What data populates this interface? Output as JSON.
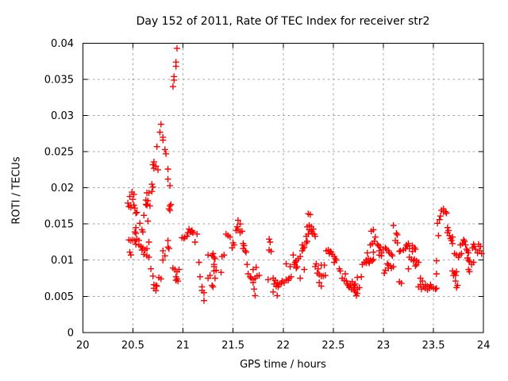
{
  "chart_data": {
    "type": "scatter",
    "title": "Day 152 of 2011, Rate Of TEC Index for receiver str2",
    "xlabel": "GPS time / hours",
    "ylabel": "ROTI / TECUs",
    "xlim": [
      20,
      24
    ],
    "ylim": [
      0,
      0.04
    ],
    "x_ticks": [
      "20",
      "20.5",
      "21",
      "21.5",
      "22",
      "22.5",
      "23",
      "23.5",
      "24"
    ],
    "y_ticks": [
      "0",
      "0.005",
      "0.01",
      "0.015",
      "0.02",
      "0.025",
      "0.03",
      "0.035",
      "0.04"
    ],
    "grid": true,
    "legend": false,
    "marker": "plus",
    "colors": {
      "points": "#ff0000",
      "grid": "#a0a0a0",
      "axis": "#000000",
      "background": "#ffffff"
    },
    "points": [
      [
        20.45,
        0.0179
      ],
      [
        20.46,
        0.0174
      ],
      [
        20.46,
        0.0128
      ],
      [
        20.47,
        0.0188
      ],
      [
        20.47,
        0.0111
      ],
      [
        20.48,
        0.0176
      ],
      [
        20.48,
        0.0173
      ],
      [
        20.48,
        0.0127
      ],
      [
        20.48,
        0.0107
      ],
      [
        20.49,
        0.0194
      ],
      [
        20.5,
        0.0184
      ],
      [
        20.5,
        0.0128
      ],
      [
        20.51,
        0.0191
      ],
      [
        20.51,
        0.0176
      ],
      [
        20.52,
        0.0172
      ],
      [
        20.52,
        0.0139
      ],
      [
        20.52,
        0.0127
      ],
      [
        20.53,
        0.0165
      ],
      [
        20.53,
        0.0145
      ],
      [
        20.53,
        0.0137
      ],
      [
        20.53,
        0.0122
      ],
      [
        20.54,
        0.0166
      ],
      [
        20.54,
        0.0129
      ],
      [
        20.56,
        0.0127
      ],
      [
        20.56,
        0.0121
      ],
      [
        20.57,
        0.0151
      ],
      [
        20.58,
        0.0119
      ],
      [
        20.59,
        0.0142
      ],
      [
        20.59,
        0.0114
      ],
      [
        20.6,
        0.0139
      ],
      [
        20.6,
        0.0117
      ],
      [
        20.61,
        0.0162
      ],
      [
        20.61,
        0.0108
      ],
      [
        20.62,
        0.0114
      ],
      [
        20.63,
        0.0183
      ],
      [
        20.63,
        0.0177
      ],
      [
        20.64,
        0.0193
      ],
      [
        20.64,
        0.0176
      ],
      [
        20.64,
        0.0116
      ],
      [
        20.64,
        0.0106
      ],
      [
        20.65,
        0.0182
      ],
      [
        20.65,
        0.0154
      ],
      [
        20.66,
        0.0193
      ],
      [
        20.66,
        0.0125
      ],
      [
        20.66,
        0.0104
      ],
      [
        20.67,
        0.0175
      ],
      [
        20.68,
        0.0088
      ],
      [
        20.69,
        0.0205
      ],
      [
        20.69,
        0.0195
      ],
      [
        20.7,
        0.0232
      ],
      [
        20.7,
        0.0201
      ],
      [
        20.7,
        0.0078
      ],
      [
        20.71,
        0.0236
      ],
      [
        20.71,
        0.0227
      ],
      [
        20.71,
        0.0066
      ],
      [
        20.71,
        0.0061
      ],
      [
        20.73,
        0.023
      ],
      [
        20.73,
        0.0065
      ],
      [
        20.73,
        0.0058
      ],
      [
        20.74,
        0.0257
      ],
      [
        20.74,
        0.0064
      ],
      [
        20.75,
        0.0225
      ],
      [
        20.76,
        0.0076
      ],
      [
        20.77,
        0.0277
      ],
      [
        20.78,
        0.0288
      ],
      [
        20.78,
        0.0074
      ],
      [
        20.8,
        0.027
      ],
      [
        20.8,
        0.0266
      ],
      [
        20.8,
        0.0113
      ],
      [
        20.8,
        0.01
      ],
      [
        20.82,
        0.0253
      ],
      [
        20.82,
        0.0106
      ],
      [
        20.83,
        0.0247
      ],
      [
        20.85,
        0.0226
      ],
      [
        20.85,
        0.0212
      ],
      [
        20.85,
        0.0127
      ],
      [
        20.85,
        0.0118
      ],
      [
        20.86,
        0.0171
      ],
      [
        20.86,
        0.0116
      ],
      [
        20.87,
        0.0203
      ],
      [
        20.87,
        0.0175
      ],
      [
        20.87,
        0.0169
      ],
      [
        20.88,
        0.0177
      ],
      [
        20.9,
        0.034
      ],
      [
        20.9,
        0.0089
      ],
      [
        20.91,
        0.0354
      ],
      [
        20.91,
        0.0349
      ],
      [
        20.92,
        0.0087
      ],
      [
        20.93,
        0.0374
      ],
      [
        20.93,
        0.0368
      ],
      [
        20.93,
        0.0077
      ],
      [
        20.93,
        0.0072
      ],
      [
        20.94,
        0.0393
      ],
      [
        20.94,
        0.0084
      ],
      [
        20.94,
        0.0074
      ],
      [
        20.95,
        0.0071
      ],
      [
        20.96,
        0.0087
      ],
      [
        20.99,
        0.0131
      ],
      [
        21.01,
        0.013
      ],
      [
        21.02,
        0.0132
      ],
      [
        21.04,
        0.0133
      ],
      [
        21.05,
        0.0138
      ],
      [
        21.06,
        0.0143
      ],
      [
        21.07,
        0.0139
      ],
      [
        21.08,
        0.014
      ],
      [
        21.09,
        0.0141
      ],
      [
        21.09,
        0.0139
      ],
      [
        21.1,
        0.0138
      ],
      [
        21.12,
        0.0125
      ],
      [
        21.14,
        0.0136
      ],
      [
        21.16,
        0.0097
      ],
      [
        21.17,
        0.0077
      ],
      [
        21.19,
        0.0063
      ],
      [
        21.19,
        0.0058
      ],
      [
        21.21,
        0.0055
      ],
      [
        21.21,
        0.0044
      ],
      [
        21.25,
        0.0107
      ],
      [
        21.25,
        0.0075
      ],
      [
        21.27,
        0.0079
      ],
      [
        21.29,
        0.0106
      ],
      [
        21.29,
        0.0065
      ],
      [
        21.3,
        0.0109
      ],
      [
        21.3,
        0.0063
      ],
      [
        21.31,
        0.0104
      ],
      [
        21.31,
        0.0094
      ],
      [
        21.31,
        0.0091
      ],
      [
        21.31,
        0.0085
      ],
      [
        21.32,
        0.0102
      ],
      [
        21.32,
        0.0075
      ],
      [
        21.33,
        0.0086
      ],
      [
        21.38,
        0.0083
      ],
      [
        21.39,
        0.0105
      ],
      [
        21.41,
        0.0107
      ],
      [
        21.43,
        0.0136
      ],
      [
        21.45,
        0.0134
      ],
      [
        21.47,
        0.0132
      ],
      [
        21.49,
        0.0117
      ],
      [
        21.5,
        0.0124
      ],
      [
        21.51,
        0.0121
      ],
      [
        21.53,
        0.0141
      ],
      [
        21.54,
        0.0146
      ],
      [
        21.55,
        0.0155
      ],
      [
        21.55,
        0.0143
      ],
      [
        21.57,
        0.015
      ],
      [
        21.57,
        0.0138
      ],
      [
        21.59,
        0.014
      ],
      [
        21.6,
        0.0123
      ],
      [
        21.6,
        0.0116
      ],
      [
        21.61,
        0.012
      ],
      [
        21.62,
        0.0113
      ],
      [
        21.63,
        0.0111
      ],
      [
        21.64,
        0.0094
      ],
      [
        21.65,
        0.0081
      ],
      [
        21.67,
        0.0077
      ],
      [
        21.68,
        0.0075
      ],
      [
        21.7,
        0.0087
      ],
      [
        21.7,
        0.0073
      ],
      [
        21.7,
        0.0069
      ],
      [
        21.71,
        0.006
      ],
      [
        21.72,
        0.0075
      ],
      [
        21.72,
        0.0051
      ],
      [
        21.73,
        0.009
      ],
      [
        21.74,
        0.0078
      ],
      [
        21.76,
        0.0079
      ],
      [
        21.85,
        0.0073
      ],
      [
        21.86,
        0.0129
      ],
      [
        21.86,
        0.0114
      ],
      [
        21.87,
        0.0125
      ],
      [
        21.88,
        0.0112
      ],
      [
        21.9,
        0.0075
      ],
      [
        21.9,
        0.0056
      ],
      [
        21.91,
        0.0067
      ],
      [
        21.92,
        0.0072
      ],
      [
        21.93,
        0.0064
      ],
      [
        21.94,
        0.0069
      ],
      [
        21.94,
        0.0051
      ],
      [
        21.95,
        0.0063
      ],
      [
        21.96,
        0.0066
      ],
      [
        21.98,
        0.0068
      ],
      [
        21.99,
        0.0071
      ],
      [
        22.01,
        0.0069
      ],
      [
        22.03,
        0.0095
      ],
      [
        22.03,
        0.0073
      ],
      [
        22.05,
        0.0072
      ],
      [
        22.06,
        0.0075
      ],
      [
        22.07,
        0.0091
      ],
      [
        22.08,
        0.0077
      ],
      [
        22.1,
        0.0107
      ],
      [
        22.11,
        0.0094
      ],
      [
        22.12,
        0.0097
      ],
      [
        22.13,
        0.0099
      ],
      [
        22.13,
        0.0089
      ],
      [
        22.14,
        0.0091
      ],
      [
        22.15,
        0.0102
      ],
      [
        22.17,
        0.0105
      ],
      [
        22.17,
        0.0075
      ],
      [
        22.19,
        0.0121
      ],
      [
        22.19,
        0.0113
      ],
      [
        22.2,
        0.0116
      ],
      [
        22.21,
        0.0118
      ],
      [
        22.21,
        0.0087
      ],
      [
        22.23,
        0.0133
      ],
      [
        22.23,
        0.0124
      ],
      [
        22.24,
        0.0146
      ],
      [
        22.24,
        0.0126
      ],
      [
        22.25,
        0.0164
      ],
      [
        22.25,
        0.0136
      ],
      [
        22.26,
        0.0148
      ],
      [
        22.26,
        0.0142
      ],
      [
        22.27,
        0.0163
      ],
      [
        22.28,
        0.0146
      ],
      [
        22.28,
        0.014
      ],
      [
        22.29,
        0.0137
      ],
      [
        22.3,
        0.0143
      ],
      [
        22.31,
        0.0136
      ],
      [
        22.32,
        0.0133
      ],
      [
        22.32,
        0.0091
      ],
      [
        22.33,
        0.0095
      ],
      [
        22.34,
        0.0082
      ],
      [
        22.35,
        0.0088
      ],
      [
        22.36,
        0.008
      ],
      [
        22.36,
        0.0069
      ],
      [
        22.38,
        0.0093
      ],
      [
        22.38,
        0.0078
      ],
      [
        22.38,
        0.0064
      ],
      [
        22.4,
        0.0078
      ],
      [
        22.41,
        0.0093
      ],
      [
        22.42,
        0.0079
      ],
      [
        22.43,
        0.0113
      ],
      [
        22.45,
        0.0114
      ],
      [
        22.46,
        0.0109
      ],
      [
        22.47,
        0.0112
      ],
      [
        22.48,
        0.0111
      ],
      [
        22.49,
        0.0108
      ],
      [
        22.51,
        0.0105
      ],
      [
        22.51,
        0.0097
      ],
      [
        22.52,
        0.0102
      ],
      [
        22.53,
        0.01
      ],
      [
        22.56,
        0.0088
      ],
      [
        22.57,
        0.0085
      ],
      [
        22.59,
        0.0075
      ],
      [
        22.61,
        0.0072
      ],
      [
        22.62,
        0.0081
      ],
      [
        22.63,
        0.0071
      ],
      [
        22.64,
        0.0067
      ],
      [
        22.65,
        0.0065
      ],
      [
        22.66,
        0.0062
      ],
      [
        22.67,
        0.0067
      ],
      [
        22.68,
        0.006
      ],
      [
        22.69,
        0.007
      ],
      [
        22.7,
        0.0062
      ],
      [
        22.71,
        0.0065
      ],
      [
        22.71,
        0.0058
      ],
      [
        22.72,
        0.0067
      ],
      [
        22.72,
        0.0056
      ],
      [
        22.73,
        0.0051
      ],
      [
        22.74,
        0.0076
      ],
      [
        22.74,
        0.006
      ],
      [
        22.74,
        0.0054
      ],
      [
        22.76,
        0.0062
      ],
      [
        22.78,
        0.0077
      ],
      [
        22.79,
        0.0094
      ],
      [
        22.81,
        0.0097
      ],
      [
        22.83,
        0.01
      ],
      [
        22.83,
        0.0096
      ],
      [
        22.84,
        0.011
      ],
      [
        22.85,
        0.0102
      ],
      [
        22.85,
        0.0098
      ],
      [
        22.86,
        0.0096
      ],
      [
        22.87,
        0.0121
      ],
      [
        22.87,
        0.01
      ],
      [
        22.88,
        0.014
      ],
      [
        22.89,
        0.0123
      ],
      [
        22.89,
        0.0099
      ],
      [
        22.9,
        0.0142
      ],
      [
        22.9,
        0.0111
      ],
      [
        22.9,
        0.0101
      ],
      [
        22.91,
        0.0126
      ],
      [
        22.92,
        0.0132
      ],
      [
        22.94,
        0.0122
      ],
      [
        22.95,
        0.012
      ],
      [
        22.96,
        0.0113
      ],
      [
        22.96,
        0.0107
      ],
      [
        22.97,
        0.0118
      ],
      [
        22.98,
        0.011
      ],
      [
        22.98,
        0.0106
      ],
      [
        23.0,
        0.0115
      ],
      [
        23.01,
        0.0082
      ],
      [
        23.02,
        0.0117
      ],
      [
        23.02,
        0.0086
      ],
      [
        23.03,
        0.0115
      ],
      [
        23.04,
        0.0095
      ],
      [
        23.05,
        0.0113
      ],
      [
        23.05,
        0.0093
      ],
      [
        23.05,
        0.0089
      ],
      [
        23.06,
        0.011
      ],
      [
        23.07,
        0.0092
      ],
      [
        23.08,
        0.0108
      ],
      [
        23.08,
        0.0089
      ],
      [
        23.09,
        0.0106
      ],
      [
        23.1,
        0.0148
      ],
      [
        23.1,
        0.0091
      ],
      [
        23.12,
        0.0127
      ],
      [
        23.13,
        0.0137
      ],
      [
        23.14,
        0.0135
      ],
      [
        23.14,
        0.0124
      ],
      [
        23.16,
        0.0112
      ],
      [
        23.16,
        0.007
      ],
      [
        23.17,
        0.0113
      ],
      [
        23.18,
        0.0068
      ],
      [
        23.2,
        0.0114
      ],
      [
        23.22,
        0.0116
      ],
      [
        23.23,
        0.0121
      ],
      [
        23.24,
        0.0119
      ],
      [
        23.25,
        0.0123
      ],
      [
        23.25,
        0.0088
      ],
      [
        23.26,
        0.0116
      ],
      [
        23.26,
        0.0104
      ],
      [
        23.28,
        0.0101
      ],
      [
        23.29,
        0.012
      ],
      [
        23.29,
        0.0112
      ],
      [
        23.3,
        0.0099
      ],
      [
        23.31,
        0.0117
      ],
      [
        23.31,
        0.0101
      ],
      [
        23.32,
        0.0115
      ],
      [
        23.32,
        0.0092
      ],
      [
        23.33,
        0.0099
      ],
      [
        23.33,
        0.0094
      ],
      [
        23.35,
        0.0097
      ],
      [
        23.35,
        0.0063
      ],
      [
        23.37,
        0.0075
      ],
      [
        23.37,
        0.0066
      ],
      [
        23.38,
        0.006
      ],
      [
        23.39,
        0.0071
      ],
      [
        23.4,
        0.0063
      ],
      [
        23.42,
        0.0066
      ],
      [
        23.42,
        0.0061
      ],
      [
        23.44,
        0.0064
      ],
      [
        23.44,
        0.0059
      ],
      [
        23.46,
        0.0061
      ],
      [
        23.47,
        0.0066
      ],
      [
        23.48,
        0.0063
      ],
      [
        23.5,
        0.0061
      ],
      [
        23.52,
        0.006
      ],
      [
        23.53,
        0.0099
      ],
      [
        23.53,
        0.0081
      ],
      [
        23.53,
        0.0061
      ],
      [
        23.54,
        0.0151
      ],
      [
        23.55,
        0.0134
      ],
      [
        23.56,
        0.0156
      ],
      [
        23.57,
        0.0161
      ],
      [
        23.58,
        0.0169
      ],
      [
        23.6,
        0.0171
      ],
      [
        23.6,
        0.0167
      ],
      [
        23.62,
        0.0167
      ],
      [
        23.63,
        0.0165
      ],
      [
        23.64,
        0.0145
      ],
      [
        23.64,
        0.0138
      ],
      [
        23.65,
        0.0141
      ],
      [
        23.66,
        0.0134
      ],
      [
        23.67,
        0.013
      ],
      [
        23.68,
        0.0127
      ],
      [
        23.69,
        0.0132
      ],
      [
        23.69,
        0.0123
      ],
      [
        23.69,
        0.0085
      ],
      [
        23.7,
        0.0079
      ],
      [
        23.71,
        0.0109
      ],
      [
        23.71,
        0.0082
      ],
      [
        23.72,
        0.0079
      ],
      [
        23.72,
        0.0071
      ],
      [
        23.73,
        0.0107
      ],
      [
        23.73,
        0.0084
      ],
      [
        23.73,
        0.0062
      ],
      [
        23.74,
        0.0065
      ],
      [
        23.75,
        0.0104
      ],
      [
        23.76,
        0.0107
      ],
      [
        23.77,
        0.0121
      ],
      [
        23.78,
        0.0109
      ],
      [
        23.79,
        0.0123
      ],
      [
        23.8,
        0.0128
      ],
      [
        23.81,
        0.0126
      ],
      [
        23.82,
        0.0121
      ],
      [
        23.83,
        0.0115
      ],
      [
        23.84,
        0.0113
      ],
      [
        23.84,
        0.0103
      ],
      [
        23.85,
        0.011
      ],
      [
        23.85,
        0.01
      ],
      [
        23.85,
        0.0087
      ],
      [
        23.86,
        0.0098
      ],
      [
        23.86,
        0.0084
      ],
      [
        23.88,
        0.0094
      ],
      [
        23.89,
        0.0117
      ],
      [
        23.9,
        0.0122
      ],
      [
        23.9,
        0.0097
      ],
      [
        23.91,
        0.0119
      ],
      [
        23.92,
        0.0115
      ],
      [
        23.94,
        0.011
      ],
      [
        23.95,
        0.0122
      ],
      [
        23.96,
        0.0113
      ],
      [
        23.97,
        0.0119
      ],
      [
        23.98,
        0.0109
      ]
    ]
  }
}
